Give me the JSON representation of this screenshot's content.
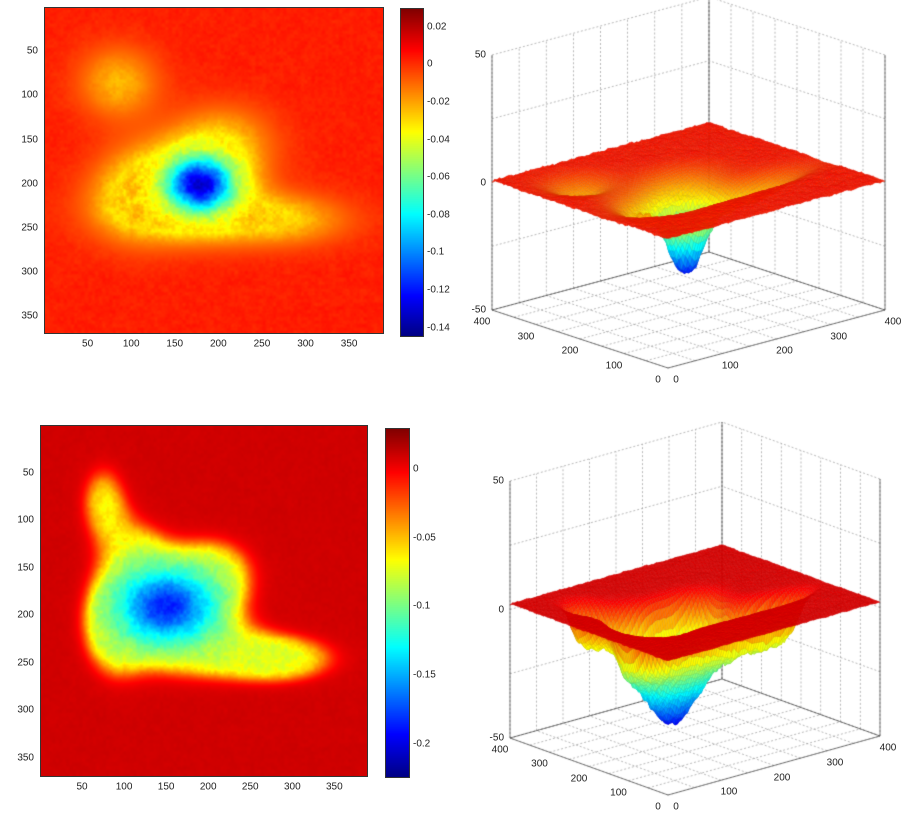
{
  "chart_data": [
    {
      "type": "heatmap",
      "panel": "top-left",
      "colormap": "jet",
      "xticks": [
        "50",
        "100",
        "150",
        "200",
        "250",
        "300",
        "350"
      ],
      "yticks": [
        "50",
        "100",
        "150",
        "200",
        "250",
        "300",
        "350"
      ],
      "xlim": [
        0,
        390
      ],
      "ylim": [
        370,
        0
      ],
      "clim": [
        -0.145,
        0.03
      ],
      "colorbar_ticks": [
        "0.02",
        "0",
        "-0.02",
        "-0.04",
        "-0.06",
        "-0.08",
        "-0.1",
        "-0.12",
        "-0.14"
      ],
      "colorbar_values": [
        0.02,
        0,
        -0.02,
        -0.04,
        -0.06,
        -0.08,
        -0.1,
        -0.12,
        -0.14
      ],
      "min_value": -0.14,
      "grid": false
    },
    {
      "type": "surface",
      "panel": "top-right",
      "colormap": "jet",
      "zticks": [
        "50",
        "0",
        "-50"
      ],
      "zlim": [
        -50,
        50
      ],
      "xticks": [
        "0",
        "100",
        "200",
        "300",
        "400"
      ],
      "yticks": [
        "400",
        "300",
        "200",
        "100",
        "0"
      ],
      "xlim": [
        0,
        400
      ],
      "ylim": [
        0,
        400
      ],
      "min_z": -37,
      "grid": true
    },
    {
      "type": "heatmap",
      "panel": "bottom-left",
      "colormap": "jet",
      "xticks": [
        "50",
        "100",
        "150",
        "200",
        "250",
        "300",
        "350"
      ],
      "yticks": [
        "50",
        "100",
        "150",
        "200",
        "250",
        "300",
        "350"
      ],
      "xlim": [
        0,
        390
      ],
      "ylim": [
        370,
        0
      ],
      "clim": [
        -0.225,
        0.03
      ],
      "colorbar_ticks": [
        "0",
        "-0.05",
        "-0.1",
        "-0.15",
        "-0.2"
      ],
      "colorbar_values": [
        0,
        -0.05,
        -0.1,
        -0.15,
        -0.2
      ],
      "min_value": -0.21,
      "grid": false
    },
    {
      "type": "surface",
      "panel": "bottom-right",
      "colormap": "jet",
      "zticks": [
        "50",
        "0",
        "-50"
      ],
      "zlim": [
        -50,
        50
      ],
      "xticks": [
        "0",
        "100",
        "200",
        "300",
        "400"
      ],
      "yticks": [
        "400",
        "300",
        "200",
        "100",
        "0"
      ],
      "xlim": [
        0,
        400
      ],
      "ylim": [
        0,
        400
      ],
      "min_z": -48,
      "grid": true
    }
  ]
}
